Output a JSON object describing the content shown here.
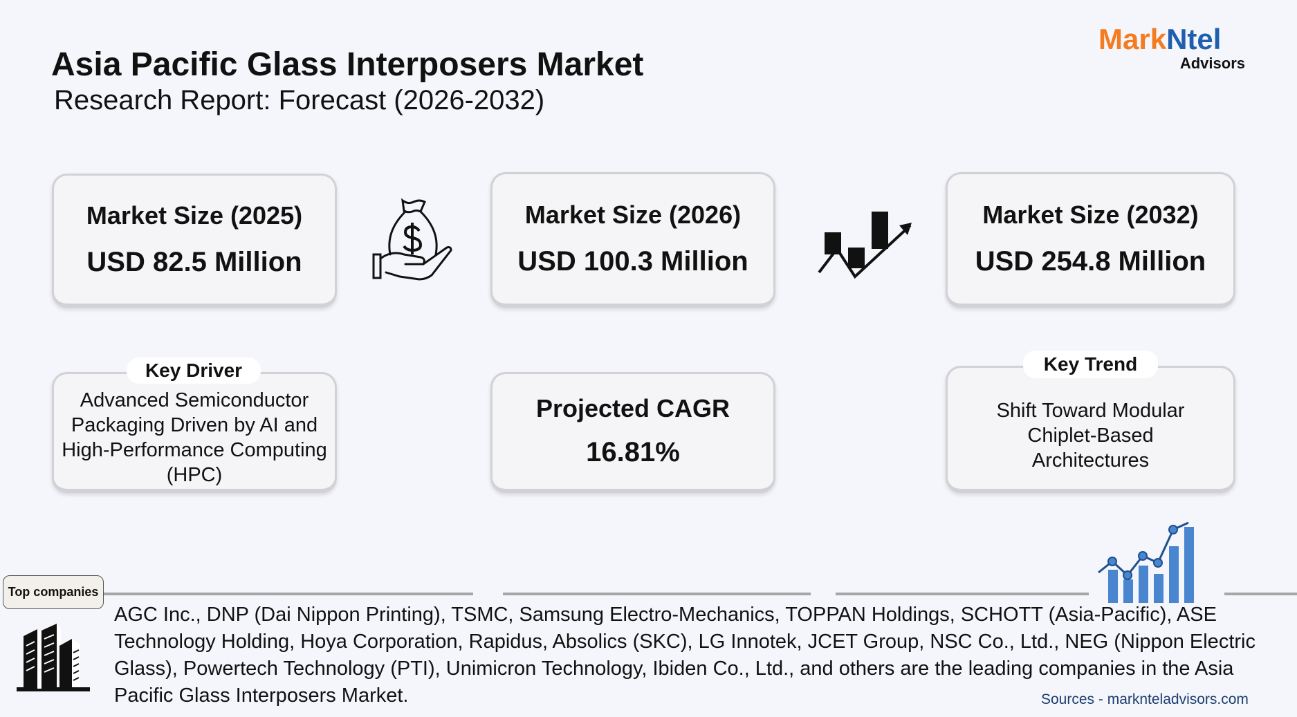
{
  "header": {
    "title": "Asia Pacific Glass Interposers Market",
    "subtitle": "Research Report: Forecast (2026-2032)"
  },
  "logo": {
    "part1": "Mark",
    "part2": "Ntel",
    "part3": "Advisors",
    "colors": {
      "orange": "#f47b20",
      "blue": "#1f5fae"
    }
  },
  "cards": [
    {
      "label": "Market Size (2025)",
      "value": "USD 82.5 Million"
    },
    {
      "label": "Market Size (2026)",
      "value": "USD 100.3 Million"
    },
    {
      "label": "Market Size (2032)",
      "value": "USD 254.8 Million"
    }
  ],
  "key_driver": {
    "label": "Key Driver",
    "text": "Advanced Semiconductor Packaging Driven by AI and High-Performance Computing (HPC)"
  },
  "cagr": {
    "label": "Projected CAGR",
    "value": "16.81%"
  },
  "key_trend": {
    "label": "Key Trend",
    "text": "Shift Toward Modular Chiplet-Based Architectures"
  },
  "companies": {
    "label": "Top companies",
    "text": "AGC Inc., DNP (Dai Nippon Printing), TSMC, Samsung Electro-Mechanics, TOPPAN Holdings, SCHOTT (Asia-Pacific), ASE Technology Holding, Hoya Corporation, Rapidus, Absolics (SKC), LG Innotek, JCET Group, NSC Co., Ltd., NEG (Nippon Electric Glass), Powertech Technology (PTI), Unimicron Technology, Ibiden Co., Ltd., and others are the leading companies in the Asia Pacific Glass Interposers Market."
  },
  "sources": "Sources - marknteladvisors.com",
  "icons": [
    "money-bag-hand-icon",
    "growth-trend-icon",
    "buildings-icon",
    "bar-chart-growth-icon"
  ]
}
